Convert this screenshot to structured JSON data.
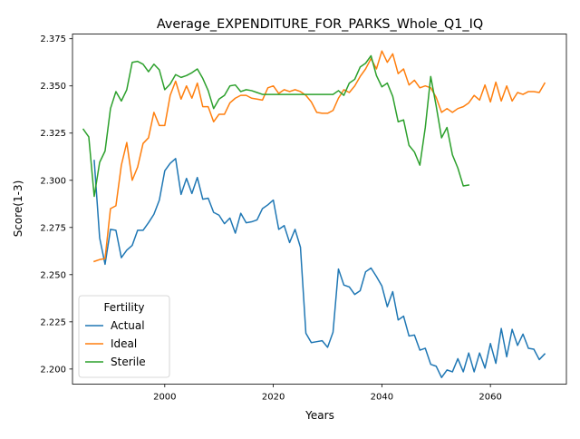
{
  "chart_data": {
    "type": "line",
    "title": "Average_EXPENDITURE_FOR_PARKS_Whole_Q1_IQ",
    "xlabel": "Years",
    "ylabel": "Score(1-3)",
    "xlim": [
      1983,
      2074
    ],
    "ylim": [
      2.192,
      2.3775
    ],
    "xticks": [
      2000,
      2020,
      2040,
      2060
    ],
    "xtick_labels": [
      "2000",
      "2020",
      "2040",
      "2060"
    ],
    "yticks": [
      2.2,
      2.225,
      2.25,
      2.275,
      2.3,
      2.325,
      2.35,
      2.375
    ],
    "ytick_labels": [
      "2.200",
      "2.225",
      "2.250",
      "2.275",
      "2.300",
      "2.325",
      "2.350",
      "2.375"
    ],
    "grid": false,
    "legend": {
      "title": "Fertility",
      "position": "lower-left"
    },
    "series": [
      {
        "name": "Actual",
        "color": "#1f77b4",
        "x": [
          1987,
          1988,
          1989,
          1990,
          1991,
          1992,
          1993,
          1994,
          1995,
          1996,
          1997,
          1998,
          1999,
          2000,
          2001,
          2002,
          2003,
          2004,
          2005,
          2006,
          2007,
          2008,
          2009,
          2010,
          2011,
          2012,
          2013,
          2014,
          2015,
          2016,
          2017,
          2018,
          2019,
          2020,
          2021,
          2022,
          2023,
          2024,
          2025,
          2026,
          2027,
          2028,
          2029,
          2030,
          2031,
          2032,
          2033,
          2034,
          2035,
          2036,
          2037,
          2038,
          2039,
          2040,
          2041,
          2042,
          2043,
          2044,
          2045,
          2046,
          2047,
          2048,
          2049,
          2050,
          2051,
          2052,
          2053,
          2054,
          2055,
          2056,
          2057,
          2058,
          2059,
          2060,
          2061,
          2062,
          2063,
          2064,
          2065,
          2066,
          2067,
          2068,
          2069,
          2070
        ],
        "y": [
          2.3105,
          2.2695,
          2.2555,
          2.274,
          2.2735,
          2.259,
          2.263,
          2.2655,
          2.2735,
          2.2735,
          2.2775,
          2.282,
          2.2895,
          2.305,
          2.309,
          2.3115,
          2.2925,
          2.301,
          2.293,
          2.3015,
          2.29,
          2.2905,
          2.283,
          2.2815,
          2.277,
          2.28,
          2.272,
          2.2825,
          2.2775,
          2.278,
          2.279,
          2.285,
          2.287,
          2.2895,
          2.274,
          2.276,
          2.267,
          2.274,
          2.2645,
          2.219,
          2.214,
          2.2145,
          2.215,
          2.2115,
          2.2195,
          2.253,
          2.2445,
          2.2435,
          2.2395,
          2.2415,
          2.2515,
          2.2535,
          2.249,
          2.244,
          2.233,
          2.241,
          2.226,
          2.228,
          2.2175,
          2.218,
          2.21,
          2.211,
          2.2025,
          2.2015,
          2.1955,
          2.1995,
          2.1985,
          2.2055,
          2.1985,
          2.2085,
          2.1985,
          2.2085,
          2.2005,
          2.2135,
          2.203,
          2.2215,
          2.2065,
          2.221,
          2.2125,
          2.2185,
          2.211,
          2.2105,
          2.205,
          2.208
        ]
      },
      {
        "name": "Ideal",
        "color": "#ff7f0e",
        "x": [
          1987,
          1988,
          1989,
          1990,
          1991,
          1992,
          1993,
          1994,
          1995,
          1996,
          1997,
          1998,
          1999,
          2000,
          2001,
          2002,
          2003,
          2004,
          2005,
          2006,
          2007,
          2008,
          2009,
          2010,
          2011,
          2012,
          2013,
          2014,
          2015,
          2016,
          2017,
          2018,
          2019,
          2020,
          2021,
          2022,
          2023,
          2024,
          2025,
          2026,
          2027,
          2028,
          2029,
          2030,
          2031,
          2032,
          2033,
          2034,
          2035,
          2036,
          2037,
          2038,
          2039,
          2040,
          2041,
          2042,
          2043,
          2044,
          2045,
          2046,
          2047,
          2048,
          2049,
          2050,
          2051,
          2052,
          2053,
          2054,
          2055,
          2056,
          2057,
          2058,
          2059,
          2060,
          2061,
          2062,
          2063,
          2064,
          2065,
          2066,
          2067,
          2068,
          2069,
          2070
        ],
        "y": [
          2.257,
          2.258,
          2.2585,
          2.285,
          2.2865,
          2.308,
          2.32,
          2.3,
          2.307,
          2.3195,
          2.3225,
          2.336,
          2.329,
          2.329,
          2.345,
          2.3525,
          2.343,
          2.35,
          2.3435,
          2.3515,
          2.339,
          2.339,
          2.331,
          2.335,
          2.335,
          2.341,
          2.3435,
          2.345,
          2.345,
          2.3435,
          2.343,
          2.3425,
          2.349,
          2.35,
          2.346,
          2.348,
          2.347,
          2.348,
          2.347,
          2.345,
          2.3415,
          2.336,
          2.3355,
          2.3355,
          2.337,
          2.3435,
          2.348,
          2.3465,
          2.35,
          2.355,
          2.359,
          2.3645,
          2.359,
          2.3685,
          2.3625,
          2.367,
          2.3565,
          2.359,
          2.3505,
          2.353,
          2.349,
          2.35,
          2.349,
          2.344,
          2.336,
          2.338,
          2.336,
          2.338,
          2.339,
          2.341,
          2.345,
          2.3425,
          2.3505,
          2.3415,
          2.352,
          2.342,
          2.35,
          2.342,
          2.3465,
          2.3455,
          2.347,
          2.347,
          2.3465,
          2.3515
        ]
      },
      {
        "name": "Sterile",
        "color": "#2ca02c",
        "x": [
          1985,
          1986,
          1987,
          1988,
          1989,
          1990,
          1991,
          1992,
          1993,
          1994,
          1995,
          1996,
          1997,
          1998,
          1999,
          2000,
          2001,
          2002,
          2003,
          2004,
          2005,
          2006,
          2007,
          2008,
          2009,
          2010,
          2011,
          2012,
          2013,
          2014,
          2015,
          2016,
          2017,
          2018,
          2019,
          2020,
          2021,
          2022,
          2023,
          2024,
          2025,
          2026,
          2027,
          2028,
          2029,
          2030,
          2031,
          2032,
          2033,
          2034,
          2035,
          2036,
          2037,
          2038,
          2039,
          2040,
          2041,
          2042,
          2043,
          2044,
          2045,
          2046,
          2047,
          2048,
          2049,
          2050,
          2051,
          2052,
          2053,
          2054,
          2055,
          2056
        ],
        "y": [
          2.327,
          2.323,
          2.2915,
          2.3095,
          2.3155,
          2.338,
          2.347,
          2.342,
          2.348,
          2.3625,
          2.363,
          2.3615,
          2.3575,
          2.3615,
          2.3585,
          2.348,
          2.351,
          2.356,
          2.3545,
          2.3555,
          2.357,
          2.359,
          2.354,
          2.3475,
          2.338,
          2.343,
          2.345,
          2.35,
          2.3505,
          2.347,
          2.348,
          2.3475,
          2.3465,
          2.3455,
          2.3455,
          2.3455,
          2.3455,
          2.3455,
          2.3455,
          2.3455,
          2.3455,
          2.3455,
          2.3455,
          2.3455,
          2.3455,
          2.3455,
          2.3455,
          2.3475,
          2.345,
          2.3515,
          2.3535,
          2.36,
          2.362,
          2.366,
          2.3555,
          2.3495,
          2.3515,
          2.3445,
          2.331,
          2.332,
          2.3185,
          2.315,
          2.308,
          2.328,
          2.355,
          2.3395,
          2.3225,
          2.328,
          2.3135,
          2.3065,
          2.297,
          2.2975
        ]
      }
    ]
  }
}
